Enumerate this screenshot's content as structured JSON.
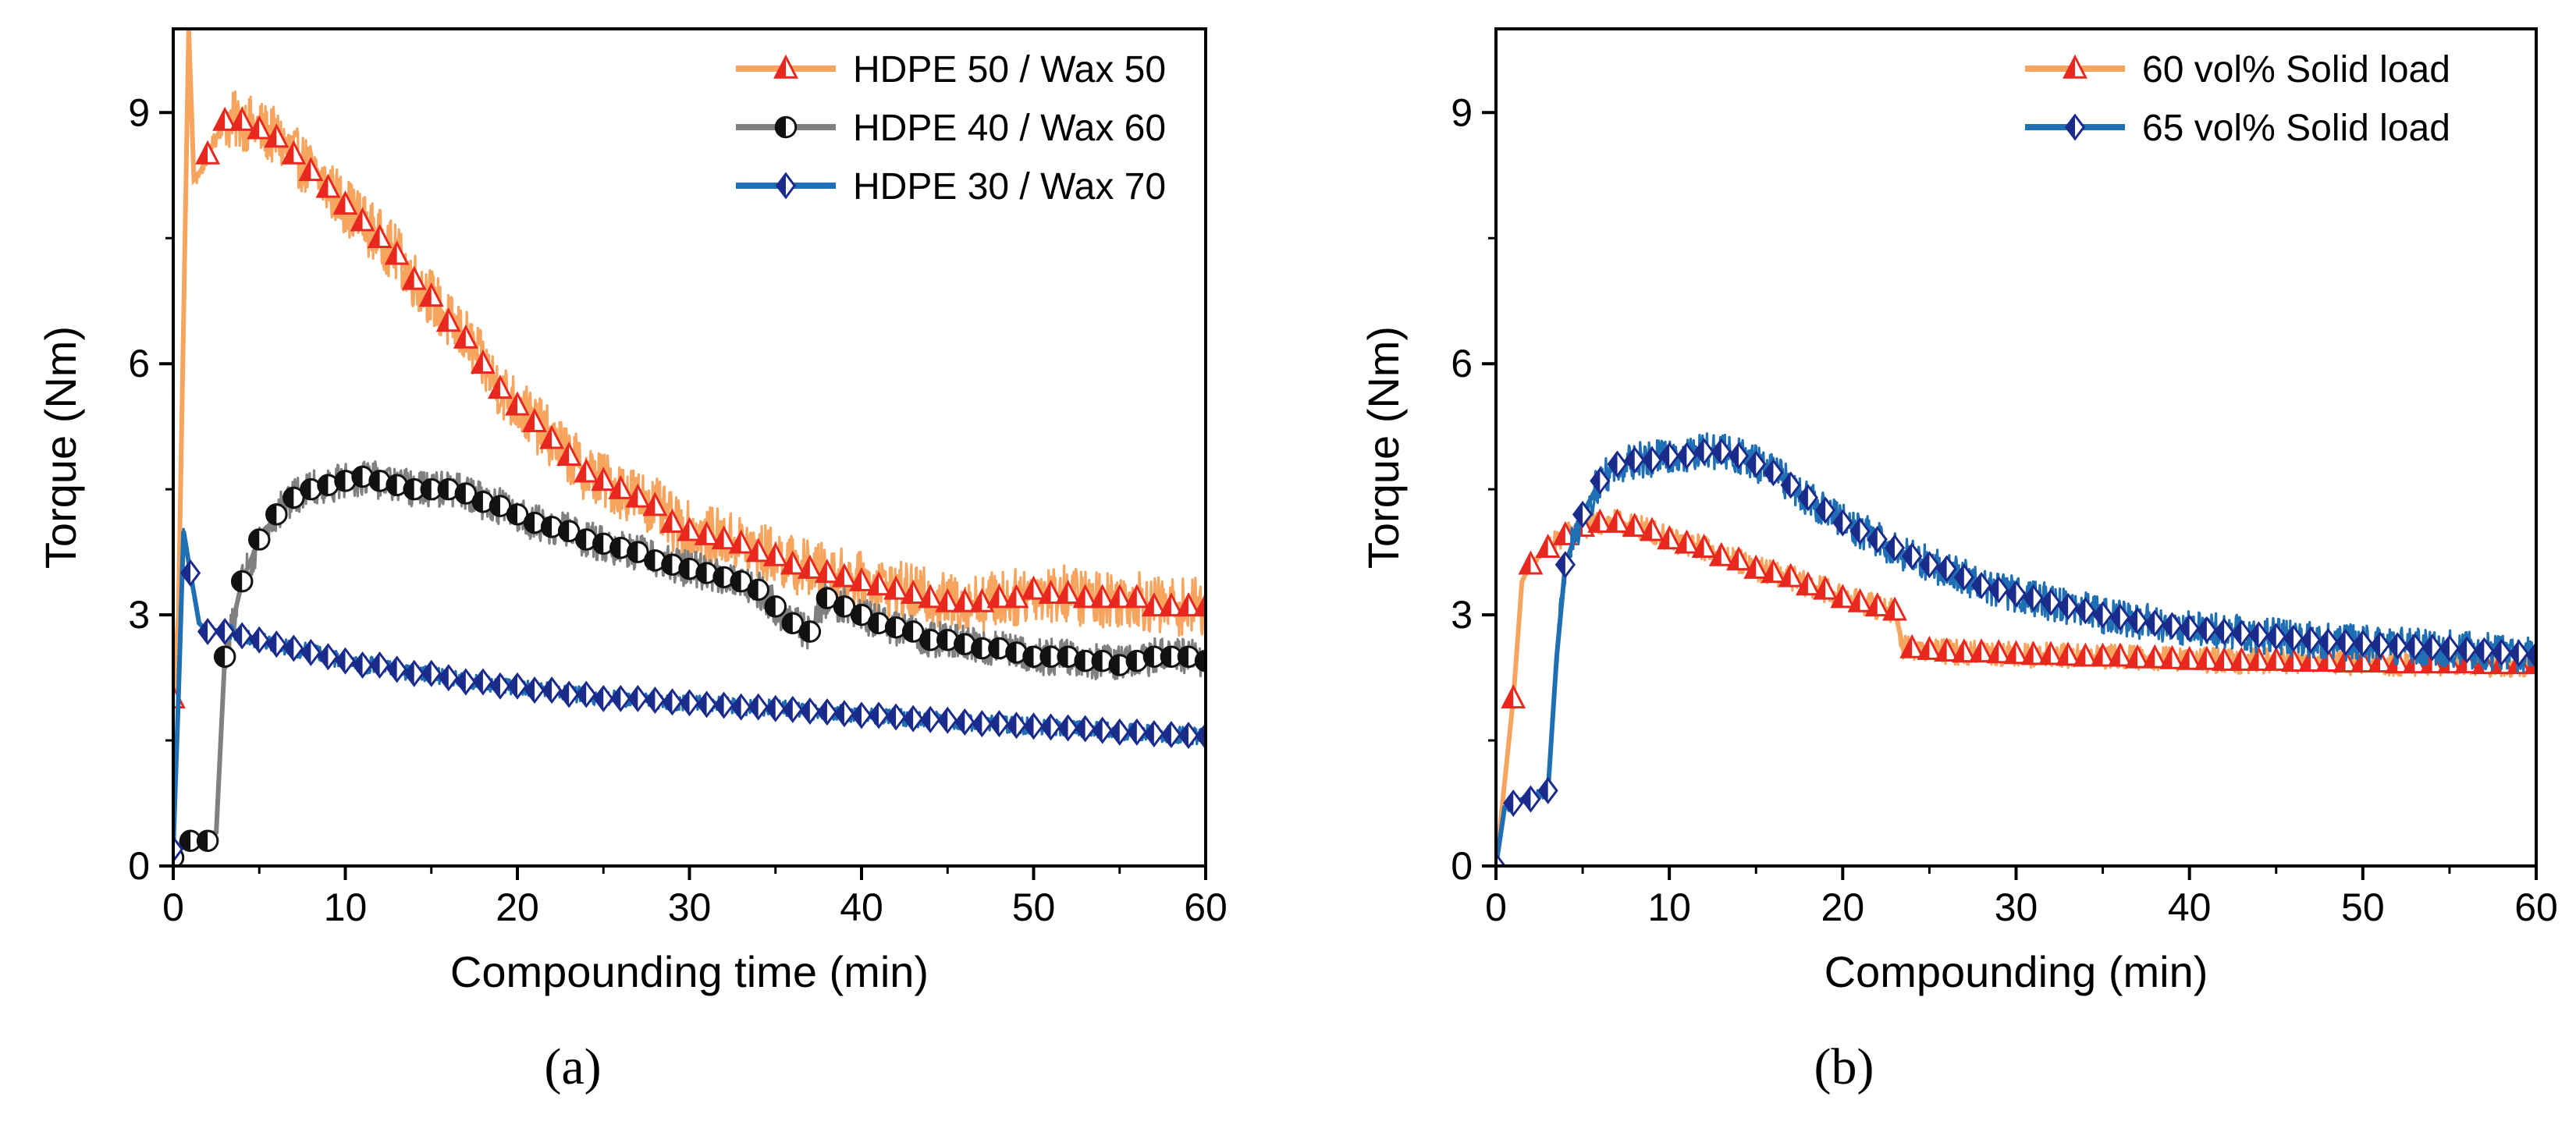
{
  "chart_data": [
    {
      "type": "line",
      "panel_label": "(a)",
      "xlabel": "Compounding time (min)",
      "ylabel": "Torque (Nm)",
      "xlim": [
        0,
        60
      ],
      "ylim": [
        0,
        10
      ],
      "xticks": [
        0,
        10,
        20,
        30,
        40,
        50,
        60
      ],
      "yticks": [
        0,
        3,
        6,
        9
      ],
      "grid": false,
      "legend_position": "top-right",
      "series": [
        {
          "name": "HDPE 50 / Wax 50",
          "color": "#F7A45E",
          "marker_color": "#E8281E",
          "marker": "triangle-up",
          "noise": 0.35,
          "x": [
            0,
            0.3,
            0.6,
            0.9,
            1.2,
            1.6,
            2,
            3,
            4,
            5,
            6,
            7,
            8,
            9,
            10,
            11,
            12,
            13,
            14,
            15,
            16,
            17,
            18,
            19,
            20,
            21,
            22,
            23,
            24,
            25,
            26,
            27,
            28,
            29,
            30,
            31,
            32,
            33,
            34,
            35,
            36,
            37,
            38,
            39,
            40,
            41,
            42,
            43,
            44,
            45,
            46,
            47,
            48,
            49,
            50,
            51,
            52,
            53,
            54,
            55,
            56,
            57,
            58,
            59,
            60
          ],
          "y": [
            2.0,
            3.0,
            6.5,
            10.0,
            8.2,
            8.3,
            8.5,
            8.9,
            8.9,
            8.8,
            8.7,
            8.5,
            8.3,
            8.1,
            7.9,
            7.7,
            7.5,
            7.3,
            7.0,
            6.8,
            6.5,
            6.3,
            6.0,
            5.7,
            5.5,
            5.3,
            5.1,
            4.9,
            4.7,
            4.6,
            4.5,
            4.4,
            4.3,
            4.1,
            4.0,
            3.95,
            3.9,
            3.85,
            3.75,
            3.7,
            3.6,
            3.55,
            3.5,
            3.45,
            3.4,
            3.35,
            3.3,
            3.25,
            3.2,
            3.15,
            3.15,
            3.15,
            3.2,
            3.2,
            3.3,
            3.25,
            3.25,
            3.2,
            3.2,
            3.2,
            3.2,
            3.1,
            3.1,
            3.1,
            3.1
          ]
        },
        {
          "name": "HDPE 40 / Wax 60",
          "color": "#808080",
          "marker_color": "#111111",
          "marker": "half-circle",
          "noise": 0.22,
          "x": [
            0,
            0.5,
            1,
            1.5,
            2,
            2.5,
            3,
            4,
            5,
            6,
            7,
            8,
            9,
            10,
            11,
            12,
            13,
            14,
            15,
            16,
            17,
            18,
            19,
            20,
            21,
            22,
            23,
            24,
            25,
            26,
            27,
            28,
            29,
            30,
            31,
            32,
            33,
            34,
            35,
            36,
            37,
            38,
            39,
            40,
            41,
            42,
            43,
            44,
            45,
            46,
            47,
            48,
            49,
            50,
            51,
            52,
            53,
            54,
            55,
            56,
            57,
            58,
            59,
            60
          ],
          "y": [
            0.1,
            0.3,
            0.3,
            0.3,
            0.3,
            0.4,
            2.5,
            3.4,
            3.9,
            4.2,
            4.4,
            4.5,
            4.55,
            4.6,
            4.65,
            4.6,
            4.55,
            4.5,
            4.5,
            4.5,
            4.45,
            4.35,
            4.3,
            4.2,
            4.1,
            4.05,
            4.0,
            3.9,
            3.85,
            3.8,
            3.75,
            3.65,
            3.6,
            3.55,
            3.5,
            3.45,
            3.4,
            3.3,
            3.1,
            2.9,
            2.8,
            3.2,
            3.1,
            3.0,
            2.9,
            2.85,
            2.8,
            2.7,
            2.7,
            2.65,
            2.6,
            2.6,
            2.55,
            2.5,
            2.5,
            2.5,
            2.45,
            2.45,
            2.4,
            2.45,
            2.5,
            2.5,
            2.5,
            2.45
          ]
        },
        {
          "name": "HDPE 30 / Wax 70",
          "color": "#1F6FB4",
          "marker_color": "#1A2B8C",
          "marker": "half-diamond",
          "noise": 0.1,
          "x": [
            0,
            0.3,
            0.6,
            1,
            1.5,
            2,
            3,
            4,
            5,
            6,
            7,
            8,
            9,
            10,
            11,
            12,
            13,
            14,
            15,
            16,
            17,
            18,
            19,
            20,
            21,
            22,
            23,
            24,
            25,
            26,
            27,
            28,
            29,
            30,
            31,
            32,
            33,
            34,
            35,
            36,
            37,
            38,
            39,
            40,
            41,
            42,
            43,
            44,
            45,
            46,
            47,
            48,
            49,
            50,
            51,
            52,
            53,
            54,
            55,
            56,
            57,
            58,
            59,
            60
          ],
          "y": [
            0.2,
            2.0,
            4.0,
            3.5,
            2.9,
            2.8,
            2.8,
            2.75,
            2.7,
            2.65,
            2.6,
            2.55,
            2.5,
            2.45,
            2.4,
            2.4,
            2.35,
            2.3,
            2.3,
            2.25,
            2.2,
            2.2,
            2.15,
            2.15,
            2.1,
            2.1,
            2.05,
            2.05,
            2.0,
            2.0,
            2.0,
            1.98,
            1.96,
            1.95,
            1.93,
            1.92,
            1.9,
            1.9,
            1.88,
            1.87,
            1.85,
            1.84,
            1.82,
            1.8,
            1.8,
            1.78,
            1.76,
            1.75,
            1.74,
            1.72,
            1.7,
            1.7,
            1.68,
            1.67,
            1.66,
            1.65,
            1.64,
            1.62,
            1.6,
            1.6,
            1.58,
            1.57,
            1.56,
            1.55
          ]
        }
      ]
    },
    {
      "type": "line",
      "panel_label": "(b)",
      "xlabel": "Compounding (min)",
      "ylabel": "Torque (Nm)",
      "xlim": [
        0,
        60
      ],
      "ylim": [
        0,
        10
      ],
      "xticks": [
        0,
        10,
        20,
        30,
        40,
        50,
        60
      ],
      "yticks": [
        0,
        3,
        6,
        9
      ],
      "grid": false,
      "legend_position": "top-right",
      "series": [
        {
          "name": "60 vol% Solid load",
          "color": "#F7A45E",
          "marker_color": "#E8281E",
          "marker": "triangle-up",
          "noise": 0.15,
          "x": [
            0,
            0.5,
            1,
            1.5,
            2,
            3,
            4,
            5,
            6,
            7,
            8,
            9,
            10,
            11,
            12,
            13,
            14,
            15,
            16,
            17,
            18,
            19,
            20,
            21,
            22,
            23,
            23.5,
            24,
            25,
            26,
            27,
            28,
            29,
            30,
            31,
            32,
            33,
            34,
            35,
            36,
            37,
            38,
            39,
            40,
            41,
            42,
            43,
            44,
            45,
            46,
            47,
            48,
            49,
            50,
            51,
            52,
            53,
            54,
            55,
            56,
            57,
            58,
            59,
            60
          ],
          "y": [
            0,
            1.0,
            2.0,
            3.4,
            3.6,
            3.8,
            3.95,
            4.05,
            4.1,
            4.1,
            4.05,
            4.0,
            3.9,
            3.85,
            3.8,
            3.7,
            3.65,
            3.55,
            3.5,
            3.45,
            3.35,
            3.3,
            3.2,
            3.15,
            3.1,
            3.05,
            2.6,
            2.6,
            2.58,
            2.56,
            2.55,
            2.55,
            2.54,
            2.53,
            2.52,
            2.52,
            2.51,
            2.5,
            2.5,
            2.5,
            2.48,
            2.48,
            2.47,
            2.46,
            2.46,
            2.45,
            2.45,
            2.45,
            2.45,
            2.44,
            2.44,
            2.44,
            2.43,
            2.43,
            2.43,
            2.42,
            2.42,
            2.42,
            2.42,
            2.42,
            2.41,
            2.41,
            2.41,
            2.41
          ]
        },
        {
          "name": "65 vol% Solid load",
          "color": "#1F6FB4",
          "marker_color": "#1A2B8C",
          "marker": "half-diamond",
          "noise": 0.22,
          "x": [
            0,
            0.5,
            1,
            1.5,
            2,
            2.5,
            3,
            3.5,
            4,
            5,
            6,
            7,
            8,
            9,
            10,
            11,
            12,
            13,
            14,
            15,
            16,
            17,
            18,
            19,
            20,
            21,
            22,
            23,
            24,
            25,
            26,
            27,
            28,
            29,
            30,
            31,
            32,
            33,
            34,
            35,
            36,
            37,
            38,
            39,
            40,
            41,
            42,
            43,
            44,
            45,
            46,
            47,
            48,
            49,
            50,
            51,
            52,
            53,
            54,
            55,
            56,
            57,
            58,
            59,
            60
          ],
          "y": [
            0,
            0.7,
            0.75,
            0.8,
            0.8,
            0.85,
            0.9,
            2.5,
            3.6,
            4.2,
            4.6,
            4.8,
            4.85,
            4.85,
            4.9,
            4.9,
            4.95,
            4.95,
            4.9,
            4.8,
            4.7,
            4.55,
            4.4,
            4.25,
            4.1,
            4.0,
            3.9,
            3.8,
            3.7,
            3.6,
            3.55,
            3.45,
            3.35,
            3.3,
            3.25,
            3.2,
            3.15,
            3.1,
            3.05,
            3.0,
            2.97,
            2.93,
            2.9,
            2.87,
            2.84,
            2.82,
            2.8,
            2.78,
            2.76,
            2.74,
            2.72,
            2.7,
            2.68,
            2.67,
            2.66,
            2.64,
            2.63,
            2.62,
            2.61,
            2.6,
            2.58,
            2.57,
            2.55,
            2.54,
            2.52
          ]
        }
      ]
    }
  ]
}
